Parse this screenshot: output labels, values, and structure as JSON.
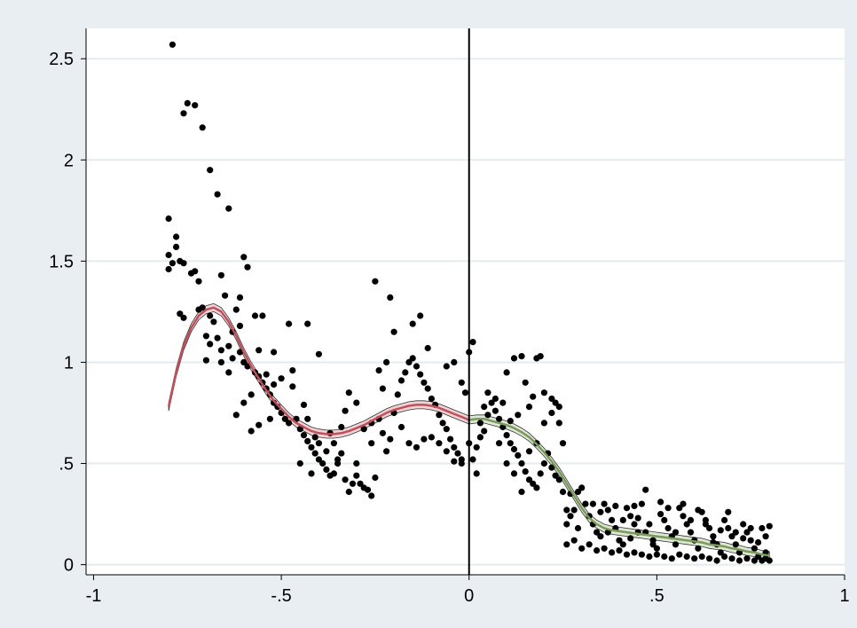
{
  "chart_data": {
    "type": "scatter",
    "title": "",
    "xlabel": "",
    "ylabel": "",
    "xlim": [
      -1.02,
      1.0
    ],
    "ylim": [
      -0.05,
      2.65
    ],
    "x_ticks": [
      -1,
      -0.5,
      0,
      0.5,
      1
    ],
    "x_tick_labels": [
      "-1",
      "-.5",
      "0",
      ".5",
      "1"
    ],
    "y_ticks": [
      0,
      0.5,
      1,
      1.5,
      2,
      2.5
    ],
    "y_tick_labels": [
      "0",
      ".5",
      "1",
      "1.5",
      "2",
      "2.5"
    ],
    "grid": "horizontal",
    "cutoff_x": 0,
    "colors": {
      "background": "#e8eef2",
      "plot_area": "#ffffff",
      "grid": "#e3ebef",
      "points": "#000000",
      "left_fit": "#c0505a",
      "right_fit": "#7a9a5a",
      "cutoff_line": "#000000"
    },
    "scatter": [
      [
        -0.79,
        2.57
      ],
      [
        -0.75,
        2.28
      ],
      [
        -0.73,
        2.27
      ],
      [
        -0.76,
        2.23
      ],
      [
        -0.71,
        2.16
      ],
      [
        -0.69,
        1.95
      ],
      [
        -0.67,
        1.83
      ],
      [
        -0.64,
        1.76
      ],
      [
        -0.8,
        1.71
      ],
      [
        -0.78,
        1.62
      ],
      [
        -0.78,
        1.57
      ],
      [
        -0.8,
        1.53
      ],
      [
        -0.6,
        1.52
      ],
      [
        -0.59,
        1.47
      ],
      [
        -0.79,
        1.49
      ],
      [
        -0.77,
        1.5
      ],
      [
        -0.76,
        1.49
      ],
      [
        -0.8,
        1.46
      ],
      [
        -0.74,
        1.44
      ],
      [
        -0.73,
        1.45
      ],
      [
        -0.72,
        1.4
      ],
      [
        -0.66,
        1.43
      ],
      [
        -0.65,
        1.33
      ],
      [
        -0.62,
        1.26
      ],
      [
        -0.61,
        1.32
      ],
      [
        -0.57,
        1.23
      ],
      [
        -0.55,
        1.23
      ],
      [
        -0.77,
        1.24
      ],
      [
        -0.76,
        1.22
      ],
      [
        -0.72,
        1.26
      ],
      [
        -0.71,
        1.27
      ],
      [
        -0.69,
        1.23
      ],
      [
        -0.7,
        1.13
      ],
      [
        -0.69,
        1.09
      ],
      [
        -0.7,
        1.01
      ],
      [
        -0.67,
        1.12
      ],
      [
        -0.66,
        1.06
      ],
      [
        -0.64,
        1.08
      ],
      [
        -0.63,
        1.02
      ],
      [
        -0.61,
        1.05
      ],
      [
        -0.6,
        1.0
      ],
      [
        -0.59,
        0.98
      ],
      [
        -0.57,
        0.95
      ],
      [
        -0.56,
        0.93
      ],
      [
        -0.55,
        0.9
      ],
      [
        -0.54,
        0.87
      ],
      [
        -0.53,
        0.84
      ],
      [
        -0.52,
        0.8
      ],
      [
        -0.51,
        0.78
      ],
      [
        -0.5,
        0.75
      ],
      [
        -0.49,
        0.72
      ],
      [
        -0.48,
        0.7
      ],
      [
        -0.46,
        0.72
      ],
      [
        -0.45,
        0.67
      ],
      [
        -0.44,
        0.64
      ],
      [
        -0.43,
        0.61
      ],
      [
        -0.42,
        0.58
      ],
      [
        -0.41,
        0.55
      ],
      [
        -0.4,
        0.52
      ],
      [
        -0.39,
        0.5
      ],
      [
        -0.38,
        0.47
      ],
      [
        -0.37,
        0.44
      ],
      [
        -0.36,
        0.45
      ],
      [
        -0.35,
        0.5
      ],
      [
        -0.34,
        0.55
      ],
      [
        -0.33,
        0.42
      ],
      [
        -0.32,
        0.36
      ],
      [
        -0.31,
        0.4
      ],
      [
        -0.3,
        0.44
      ],
      [
        -0.29,
        0.4
      ],
      [
        -0.28,
        0.38
      ],
      [
        -0.27,
        0.37
      ],
      [
        -0.26,
        0.34
      ],
      [
        -0.25,
        0.43
      ],
      [
        -0.47,
        0.96
      ],
      [
        -0.5,
        0.92
      ],
      [
        -0.52,
        0.89
      ],
      [
        -0.54,
        0.94
      ],
      [
        -0.58,
        0.84
      ],
      [
        -0.6,
        0.8
      ],
      [
        -0.62,
        0.74
      ],
      [
        -0.58,
        0.66
      ],
      [
        -0.56,
        0.69
      ],
      [
        -0.53,
        0.72
      ],
      [
        -0.47,
        0.88
      ],
      [
        -0.44,
        0.79
      ],
      [
        -0.43,
        0.72
      ],
      [
        -0.41,
        0.63
      ],
      [
        -0.4,
        0.6
      ],
      [
        -0.38,
        0.56
      ],
      [
        -0.36,
        0.6
      ],
      [
        -0.35,
        0.52
      ],
      [
        -0.33,
        0.76
      ],
      [
        -0.32,
        0.85
      ],
      [
        -0.3,
        0.8
      ],
      [
        -0.28,
        0.67
      ],
      [
        -0.26,
        0.6
      ],
      [
        -0.24,
        0.72
      ],
      [
        -0.23,
        0.65
      ],
      [
        -0.22,
        0.56
      ],
      [
        -0.21,
        0.62
      ],
      [
        -0.2,
        0.75
      ],
      [
        -0.19,
        0.84
      ],
      [
        -0.18,
        0.91
      ],
      [
        -0.17,
        0.95
      ],
      [
        -0.16,
        1.0
      ],
      [
        -0.15,
        1.02
      ],
      [
        -0.14,
        0.98
      ],
      [
        -0.13,
        0.94
      ],
      [
        -0.12,
        0.9
      ],
      [
        -0.11,
        0.87
      ],
      [
        -0.1,
        0.82
      ],
      [
        -0.09,
        0.79
      ],
      [
        -0.08,
        0.74
      ],
      [
        -0.07,
        0.7
      ],
      [
        -0.06,
        0.67
      ],
      [
        -0.05,
        0.62
      ],
      [
        -0.04,
        0.58
      ],
      [
        -0.03,
        0.55
      ],
      [
        -0.02,
        0.52
      ],
      [
        -0.25,
        1.4
      ],
      [
        -0.21,
        1.32
      ],
      [
        -0.48,
        1.19
      ],
      [
        -0.43,
        1.19
      ],
      [
        -0.4,
        1.04
      ],
      [
        -0.2,
        1.15
      ],
      [
        -0.15,
        1.19
      ],
      [
        -0.13,
        1.23
      ],
      [
        -0.11,
        1.07
      ],
      [
        -0.06,
        0.98
      ],
      [
        -0.04,
        1.0
      ],
      [
        -0.02,
        0.9
      ],
      [
        -0.01,
        0.85
      ],
      [
        0.0,
        1.05
      ],
      [
        0.01,
        1.1
      ],
      [
        -0.22,
        1.0
      ],
      [
        -0.23,
        0.87
      ],
      [
        -0.24,
        0.96
      ],
      [
        -0.18,
        0.68
      ],
      [
        -0.16,
        0.6
      ],
      [
        -0.14,
        0.58
      ],
      [
        -0.12,
        0.62
      ],
      [
        -0.1,
        0.63
      ],
      [
        -0.08,
        0.6
      ],
      [
        -0.06,
        0.56
      ],
      [
        -0.04,
        0.51
      ],
      [
        -0.02,
        0.5
      ],
      [
        -0.26,
        0.7
      ],
      [
        -0.3,
        0.5
      ],
      [
        -0.45,
        0.5
      ],
      [
        -0.42,
        0.45
      ],
      [
        -0.37,
        0.65
      ],
      [
        -0.34,
        0.68
      ],
      [
        -0.64,
        0.95
      ],
      [
        -0.66,
        1.0
      ],
      [
        -0.68,
        1.2
      ],
      [
        -0.63,
        1.15
      ],
      [
        -0.61,
        1.18
      ],
      [
        -0.56,
        1.06
      ],
      [
        -0.52,
        1.05
      ],
      [
        0.0,
        0.6
      ],
      [
        0.01,
        0.52
      ],
      [
        0.02,
        0.45
      ],
      [
        0.03,
        0.7
      ],
      [
        0.04,
        0.78
      ],
      [
        0.05,
        0.85
      ],
      [
        0.06,
        0.8
      ],
      [
        0.07,
        0.76
      ],
      [
        0.08,
        0.72
      ],
      [
        0.09,
        0.68
      ],
      [
        0.1,
        0.64
      ],
      [
        0.11,
        0.6
      ],
      [
        0.12,
        0.57
      ],
      [
        0.13,
        0.54
      ],
      [
        0.14,
        0.5
      ],
      [
        0.15,
        0.46
      ],
      [
        0.16,
        0.42
      ],
      [
        0.17,
        0.4
      ],
      [
        0.18,
        0.38
      ],
      [
        0.19,
        0.45
      ],
      [
        0.2,
        0.5
      ],
      [
        0.21,
        0.55
      ],
      [
        0.22,
        0.48
      ],
      [
        0.23,
        0.44
      ],
      [
        0.24,
        0.42
      ],
      [
        0.12,
        1.02
      ],
      [
        0.14,
        1.03
      ],
      [
        0.18,
        1.02
      ],
      [
        0.19,
        1.03
      ],
      [
        0.1,
        0.95
      ],
      [
        0.15,
        0.9
      ],
      [
        0.2,
        0.85
      ],
      [
        0.22,
        0.82
      ],
      [
        0.23,
        0.8
      ],
      [
        0.24,
        0.78
      ],
      [
        0.17,
        0.83
      ],
      [
        0.16,
        0.78
      ],
      [
        0.13,
        0.74
      ],
      [
        0.11,
        0.71
      ],
      [
        0.09,
        0.8
      ],
      [
        0.07,
        0.82
      ],
      [
        0.05,
        0.74
      ],
      [
        0.04,
        0.66
      ],
      [
        0.03,
        0.63
      ],
      [
        0.02,
        0.58
      ],
      [
        0.08,
        0.6
      ],
      [
        0.1,
        0.5
      ],
      [
        0.12,
        0.45
      ],
      [
        0.14,
        0.36
      ],
      [
        0.16,
        0.56
      ],
      [
        0.18,
        0.6
      ],
      [
        0.2,
        0.7
      ],
      [
        0.22,
        0.75
      ],
      [
        0.24,
        0.7
      ],
      [
        0.25,
        0.6
      ],
      [
        0.26,
        0.27
      ],
      [
        0.27,
        0.24
      ],
      [
        0.28,
        0.27
      ],
      [
        0.29,
        0.36
      ],
      [
        0.3,
        0.38
      ],
      [
        0.31,
        0.3
      ],
      [
        0.32,
        0.24
      ],
      [
        0.33,
        0.2
      ],
      [
        0.34,
        0.16
      ],
      [
        0.35,
        0.14
      ],
      [
        0.36,
        0.3
      ],
      [
        0.37,
        0.27
      ],
      [
        0.38,
        0.22
      ],
      [
        0.39,
        0.18
      ],
      [
        0.4,
        0.12
      ],
      [
        0.41,
        0.1
      ],
      [
        0.42,
        0.28
      ],
      [
        0.43,
        0.24
      ],
      [
        0.44,
        0.2
      ],
      [
        0.45,
        0.16
      ],
      [
        0.46,
        0.3
      ],
      [
        0.47,
        0.37
      ],
      [
        0.48,
        0.2
      ],
      [
        0.49,
        0.12
      ],
      [
        0.5,
        0.08
      ],
      [
        0.51,
        0.25
      ],
      [
        0.52,
        0.22
      ],
      [
        0.53,
        0.18
      ],
      [
        0.54,
        0.14
      ],
      [
        0.55,
        0.1
      ],
      [
        0.56,
        0.28
      ],
      [
        0.57,
        0.24
      ],
      [
        0.58,
        0.2
      ],
      [
        0.59,
        0.16
      ],
      [
        0.6,
        0.12
      ],
      [
        0.61,
        0.08
      ],
      [
        0.62,
        0.26
      ],
      [
        0.63,
        0.22
      ],
      [
        0.64,
        0.18
      ],
      [
        0.65,
        0.14
      ],
      [
        0.66,
        0.1
      ],
      [
        0.67,
        0.06
      ],
      [
        0.68,
        0.22
      ],
      [
        0.69,
        0.18
      ],
      [
        0.7,
        0.14
      ],
      [
        0.71,
        0.1
      ],
      [
        0.72,
        0.06
      ],
      [
        0.73,
        0.2
      ],
      [
        0.74,
        0.16
      ],
      [
        0.75,
        0.12
      ],
      [
        0.76,
        0.08
      ],
      [
        0.77,
        0.04
      ],
      [
        0.78,
        0.18
      ],
      [
        0.79,
        0.14
      ],
      [
        0.8,
        0.19
      ],
      [
        0.26,
        0.1
      ],
      [
        0.28,
        0.12
      ],
      [
        0.3,
        0.08
      ],
      [
        0.32,
        0.1
      ],
      [
        0.34,
        0.07
      ],
      [
        0.36,
        0.08
      ],
      [
        0.38,
        0.06
      ],
      [
        0.4,
        0.07
      ],
      [
        0.42,
        0.05
      ],
      [
        0.44,
        0.06
      ],
      [
        0.46,
        0.05
      ],
      [
        0.48,
        0.04
      ],
      [
        0.5,
        0.05
      ],
      [
        0.52,
        0.04
      ],
      [
        0.54,
        0.03
      ],
      [
        0.56,
        0.05
      ],
      [
        0.58,
        0.04
      ],
      [
        0.6,
        0.03
      ],
      [
        0.62,
        0.04
      ],
      [
        0.64,
        0.03
      ],
      [
        0.66,
        0.02
      ],
      [
        0.68,
        0.04
      ],
      [
        0.7,
        0.03
      ],
      [
        0.72,
        0.02
      ],
      [
        0.74,
        0.03
      ],
      [
        0.76,
        0.02
      ],
      [
        0.78,
        0.02
      ],
      [
        0.79,
        0.03
      ],
      [
        0.8,
        0.02
      ],
      [
        0.27,
        0.35
      ],
      [
        0.33,
        0.3
      ],
      [
        0.39,
        0.29
      ],
      [
        0.45,
        0.23
      ],
      [
        0.51,
        0.31
      ],
      [
        0.57,
        0.3
      ],
      [
        0.63,
        0.2
      ],
      [
        0.69,
        0.26
      ],
      [
        0.75,
        0.18
      ],
      [
        0.44,
        0.29
      ],
      [
        0.53,
        0.28
      ],
      [
        0.61,
        0.27
      ],
      [
        0.67,
        0.17
      ],
      [
        0.73,
        0.13
      ],
      [
        0.77,
        0.11
      ],
      [
        0.35,
        0.26
      ],
      [
        0.41,
        0.22
      ],
      [
        0.47,
        0.16
      ],
      [
        0.55,
        0.16
      ],
      [
        0.59,
        0.22
      ],
      [
        0.65,
        0.11
      ],
      [
        0.71,
        0.16
      ],
      [
        0.79,
        0.06
      ],
      [
        0.29,
        0.18
      ],
      [
        0.37,
        0.16
      ],
      [
        0.43,
        0.13
      ],
      [
        0.49,
        0.1
      ],
      [
        0.25,
        0.36
      ],
      [
        0.26,
        0.2
      ]
    ],
    "fit_left": [
      [
        -0.8,
        0.78
      ],
      [
        -0.78,
        0.95
      ],
      [
        -0.76,
        1.08
      ],
      [
        -0.74,
        1.17
      ],
      [
        -0.72,
        1.23
      ],
      [
        -0.7,
        1.26
      ],
      [
        -0.68,
        1.27
      ],
      [
        -0.66,
        1.25
      ],
      [
        -0.64,
        1.2
      ],
      [
        -0.62,
        1.13
      ],
      [
        -0.6,
        1.05
      ],
      [
        -0.58,
        0.98
      ],
      [
        -0.56,
        0.92
      ],
      [
        -0.54,
        0.86
      ],
      [
        -0.52,
        0.81
      ],
      [
        -0.5,
        0.77
      ],
      [
        -0.48,
        0.73
      ],
      [
        -0.46,
        0.7
      ],
      [
        -0.44,
        0.68
      ],
      [
        -0.42,
        0.66
      ],
      [
        -0.4,
        0.65
      ],
      [
        -0.38,
        0.645
      ],
      [
        -0.36,
        0.645
      ],
      [
        -0.34,
        0.65
      ],
      [
        -0.32,
        0.66
      ],
      [
        -0.3,
        0.675
      ],
      [
        -0.28,
        0.69
      ],
      [
        -0.26,
        0.71
      ],
      [
        -0.24,
        0.73
      ],
      [
        -0.22,
        0.75
      ],
      [
        -0.2,
        0.765
      ],
      [
        -0.18,
        0.775
      ],
      [
        -0.16,
        0.785
      ],
      [
        -0.14,
        0.79
      ],
      [
        -0.12,
        0.79
      ],
      [
        -0.1,
        0.785
      ],
      [
        -0.08,
        0.775
      ],
      [
        -0.06,
        0.76
      ],
      [
        -0.04,
        0.745
      ],
      [
        -0.02,
        0.73
      ],
      [
        0.0,
        0.715
      ]
    ],
    "fit_right": [
      [
        0.0,
        0.715
      ],
      [
        0.02,
        0.72
      ],
      [
        0.04,
        0.72
      ],
      [
        0.06,
        0.71
      ],
      [
        0.08,
        0.7
      ],
      [
        0.1,
        0.69
      ],
      [
        0.12,
        0.675
      ],
      [
        0.14,
        0.655
      ],
      [
        0.16,
        0.63
      ],
      [
        0.18,
        0.595
      ],
      [
        0.2,
        0.555
      ],
      [
        0.22,
        0.51
      ],
      [
        0.24,
        0.46
      ],
      [
        0.26,
        0.4
      ],
      [
        0.28,
        0.34
      ],
      [
        0.3,
        0.28
      ],
      [
        0.32,
        0.23
      ],
      [
        0.34,
        0.2
      ],
      [
        0.36,
        0.18
      ],
      [
        0.38,
        0.17
      ],
      [
        0.4,
        0.165
      ],
      [
        0.42,
        0.16
      ],
      [
        0.44,
        0.155
      ],
      [
        0.46,
        0.15
      ],
      [
        0.48,
        0.145
      ],
      [
        0.5,
        0.14
      ],
      [
        0.52,
        0.135
      ],
      [
        0.54,
        0.13
      ],
      [
        0.56,
        0.125
      ],
      [
        0.58,
        0.12
      ],
      [
        0.6,
        0.115
      ],
      [
        0.62,
        0.11
      ],
      [
        0.64,
        0.1
      ],
      [
        0.66,
        0.095
      ],
      [
        0.68,
        0.09
      ],
      [
        0.7,
        0.08
      ],
      [
        0.72,
        0.075
      ],
      [
        0.74,
        0.065
      ],
      [
        0.76,
        0.06
      ],
      [
        0.78,
        0.05
      ],
      [
        0.8,
        0.045
      ]
    ],
    "ci_half_width": 0.02
  }
}
